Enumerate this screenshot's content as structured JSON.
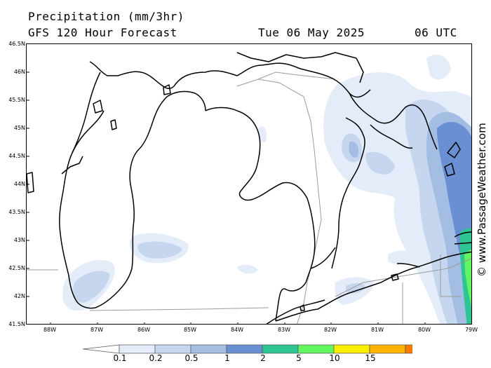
{
  "header": {
    "title": "Precipitation (mm/3hr)",
    "subtitle": "GFS 120 Hour Forecast",
    "valid_date": "Tue 06 May 2025",
    "valid_time": "06 UTC"
  },
  "credit": "© www.PassageWeather.com",
  "axes": {
    "lat_labels": [
      "46.5N",
      "46N",
      "45.5N",
      "45N",
      "44.5N",
      "44N",
      "43.5N",
      "43N",
      "42.5N",
      "42N",
      "41.5N"
    ],
    "lon_labels": [
      "88W",
      "87W",
      "86W",
      "85W",
      "84W",
      "83W",
      "82W",
      "81W",
      "80W",
      "79W"
    ]
  },
  "legend": {
    "bins": [
      {
        "color": "#ffffff"
      },
      {
        "color": "#e3ecf8"
      },
      {
        "color": "#c5d6ee"
      },
      {
        "color": "#a3bde3"
      },
      {
        "color": "#6b8fd3"
      },
      {
        "color": "#2fc494"
      },
      {
        "color": "#62f560"
      },
      {
        "color": "#fbef00"
      },
      {
        "color": "#ffb300"
      },
      {
        "color": "#ff7a00"
      },
      {
        "color": "#e84040"
      }
    ],
    "labels": [
      "0.1",
      "0.2",
      "0.5",
      "1",
      "2",
      "5",
      "10",
      "15"
    ]
  }
}
